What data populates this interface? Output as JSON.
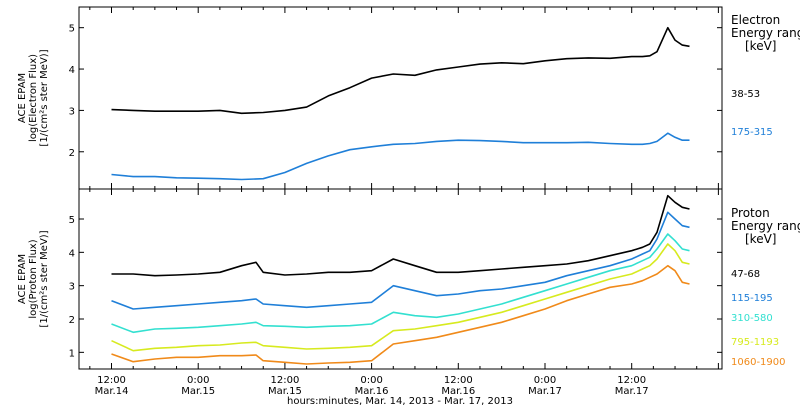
{
  "chart_data": [
    {
      "type": "line",
      "panel": "electron",
      "ylabel": [
        "ACE EPAM",
        "log(Electron Flux)",
        "[1/(cm²s ster MeV)]"
      ],
      "ylim": [
        1.1,
        5.5
      ],
      "yticks": [
        2,
        3,
        4,
        5
      ],
      "legend_title": [
        "Electron",
        "Energy range",
        "[keV]"
      ],
      "x_hours": [
        0,
        3,
        6,
        9,
        12,
        15,
        18,
        21,
        24,
        27,
        30,
        33,
        36,
        39,
        42,
        45,
        48,
        51,
        54,
        57,
        60,
        63,
        66,
        69,
        72,
        73.5,
        74.5,
        75.5,
        77,
        78,
        79,
        80
      ],
      "series": [
        {
          "name": "38-53",
          "color": "#000000",
          "values": [
            3.02,
            3.0,
            2.98,
            2.98,
            2.98,
            3.0,
            2.93,
            2.95,
            3.0,
            3.08,
            3.35,
            3.55,
            3.78,
            3.88,
            3.85,
            3.98,
            4.05,
            4.12,
            4.15,
            4.13,
            4.2,
            4.25,
            4.27,
            4.26,
            4.3,
            4.3,
            4.32,
            4.42,
            5.0,
            4.7,
            4.58,
            4.55
          ]
        },
        {
          "name": "175-315",
          "color": "#1f7fd8",
          "values": [
            1.45,
            1.4,
            1.4,
            1.37,
            1.36,
            1.35,
            1.33,
            1.35,
            1.5,
            1.72,
            1.9,
            2.05,
            2.12,
            2.18,
            2.2,
            2.25,
            2.28,
            2.27,
            2.25,
            2.22,
            2.22,
            2.22,
            2.23,
            2.2,
            2.18,
            2.18,
            2.2,
            2.25,
            2.45,
            2.35,
            2.28,
            2.28
          ]
        }
      ]
    },
    {
      "type": "line",
      "panel": "proton",
      "ylabel": [
        "ACE EPAM",
        "log(Proton Flux)",
        "[1/(cm²s ster MeV)]"
      ],
      "ylim": [
        0.5,
        5.9
      ],
      "yticks": [
        1,
        2,
        3,
        4,
        5
      ],
      "legend_title": [
        "Proton",
        "Energy range",
        "[keV]"
      ],
      "x_hours": [
        0,
        3,
        6,
        9,
        12,
        15,
        18,
        20,
        21,
        24,
        27,
        30,
        33,
        36,
        39,
        42,
        45,
        48,
        51,
        54,
        57,
        60,
        63,
        66,
        69,
        72,
        73.5,
        74.5,
        75.5,
        77,
        78,
        79,
        80
      ],
      "series": [
        {
          "name": "47-68",
          "color": "#000000",
          "values": [
            3.35,
            3.35,
            3.3,
            3.32,
            3.35,
            3.4,
            3.6,
            3.7,
            3.4,
            3.32,
            3.35,
            3.4,
            3.4,
            3.45,
            3.8,
            3.6,
            3.4,
            3.4,
            3.45,
            3.5,
            3.55,
            3.6,
            3.65,
            3.75,
            3.9,
            4.05,
            4.15,
            4.25,
            4.6,
            5.7,
            5.5,
            5.35,
            5.3
          ]
        },
        {
          "name": "115-195",
          "color": "#1f7fd8",
          "values": [
            2.55,
            2.3,
            2.35,
            2.4,
            2.45,
            2.5,
            2.55,
            2.6,
            2.45,
            2.4,
            2.35,
            2.4,
            2.45,
            2.5,
            3.0,
            2.85,
            2.7,
            2.75,
            2.85,
            2.9,
            3.0,
            3.1,
            3.3,
            3.45,
            3.6,
            3.8,
            3.95,
            4.05,
            4.4,
            5.2,
            5.0,
            4.8,
            4.75
          ]
        },
        {
          "name": "310-580",
          "color": "#33e0d0",
          "values": [
            1.85,
            1.6,
            1.7,
            1.72,
            1.75,
            1.8,
            1.85,
            1.9,
            1.8,
            1.78,
            1.75,
            1.78,
            1.8,
            1.85,
            2.2,
            2.1,
            2.05,
            2.15,
            2.3,
            2.45,
            2.65,
            2.85,
            3.05,
            3.25,
            3.45,
            3.6,
            3.75,
            3.85,
            4.1,
            4.55,
            4.35,
            4.1,
            4.05
          ]
        },
        {
          "name": "795-1193",
          "color": "#d7ea1f",
          "values": [
            1.35,
            1.05,
            1.12,
            1.15,
            1.2,
            1.22,
            1.28,
            1.3,
            1.2,
            1.15,
            1.1,
            1.12,
            1.15,
            1.2,
            1.65,
            1.7,
            1.8,
            1.9,
            2.05,
            2.2,
            2.4,
            2.6,
            2.8,
            3.0,
            3.2,
            3.35,
            3.5,
            3.6,
            3.8,
            4.25,
            4.05,
            3.7,
            3.65
          ]
        },
        {
          "name": "1060-1900",
          "color": "#f08a1a",
          "values": [
            0.95,
            0.72,
            0.8,
            0.85,
            0.85,
            0.9,
            0.9,
            0.92,
            0.75,
            0.7,
            0.65,
            0.68,
            0.7,
            0.75,
            1.25,
            1.35,
            1.45,
            1.6,
            1.75,
            1.9,
            2.1,
            2.3,
            2.55,
            2.75,
            2.95,
            3.05,
            3.15,
            3.25,
            3.35,
            3.6,
            3.45,
            3.1,
            3.05
          ]
        }
      ]
    }
  ],
  "x_axis": {
    "tick_labels": [
      {
        "h": 0,
        "time": "12:00",
        "date": "Mar.14"
      },
      {
        "h": 12,
        "time": "0:00",
        "date": "Mar.15"
      },
      {
        "h": 24,
        "time": "12:00",
        "date": "Mar.15"
      },
      {
        "h": 36,
        "time": "0:00",
        "date": "Mar.16"
      },
      {
        "h": 48,
        "time": "12:00",
        "date": "Mar.16"
      },
      {
        "h": 60,
        "time": "0:00",
        "date": "Mar.17"
      },
      {
        "h": 72,
        "time": "12:00",
        "date": "Mar.17"
      }
    ],
    "title": "hours:minutes, Mar. 14, 2013 - Mar. 17, 2013"
  }
}
